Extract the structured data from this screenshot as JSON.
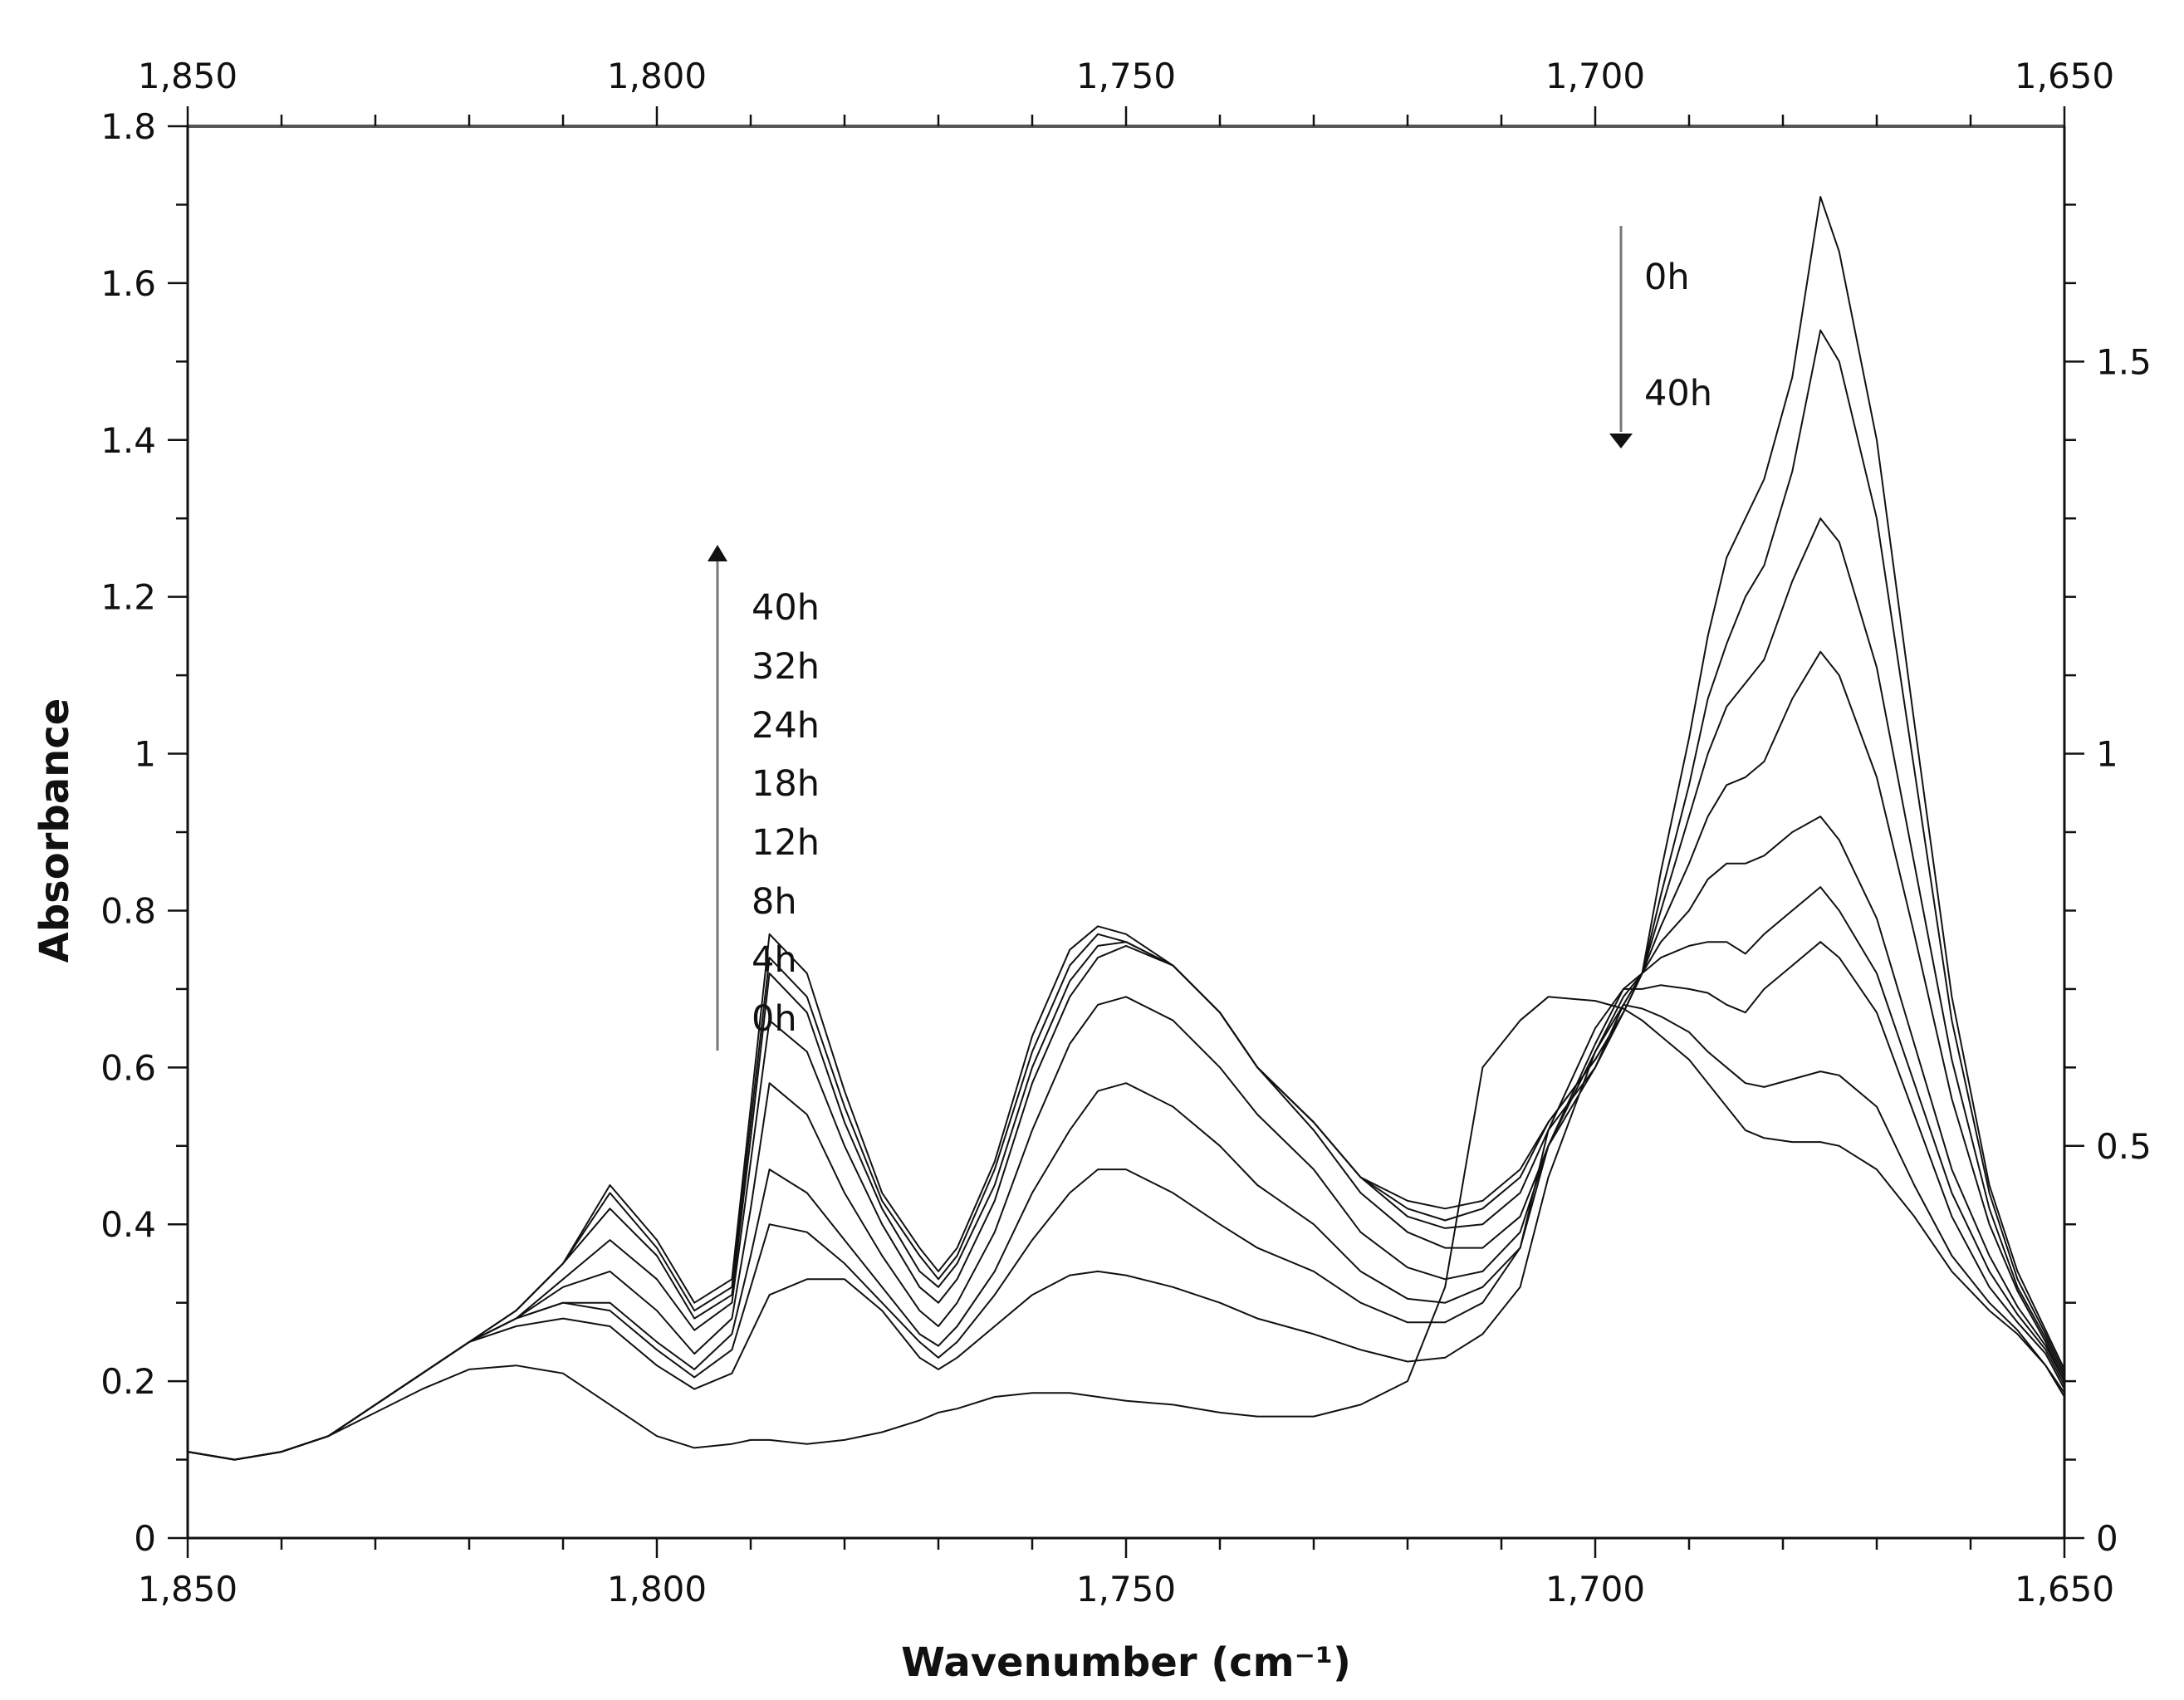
{
  "chart_data": {
    "type": "line",
    "title": "",
    "xlabel": "Wavenumber (cm⁻¹)",
    "ylabel": "Absorbance",
    "xlim": [
      1850,
      1650
    ],
    "ylim": [
      0,
      1.8
    ],
    "ylim_right": [
      0,
      1.8
    ],
    "x_ticks": [
      1850,
      1800,
      1750,
      1700,
      1650
    ],
    "x_tick_labels": [
      "1,850",
      "1,800",
      "1,750",
      "1,700",
      "1,650"
    ],
    "y_ticks": [
      0,
      0.2,
      0.4,
      0.6,
      0.8,
      1,
      1.2,
      1.4,
      1.6,
      1.8
    ],
    "y_tick_labels": [
      "0",
      "0.2",
      "0.4",
      "0.6",
      "0.8",
      "1",
      "1.2",
      "1.4",
      "1.6",
      "1.8"
    ],
    "y_right_ticks": [
      0,
      0.5,
      1,
      1.5
    ],
    "y_right_tick_labels": [
      "0",
      "0.5",
      "1",
      "1.5"
    ],
    "grid": false,
    "annotations": {
      "increasing_label": [
        "40h",
        "32h",
        "24h",
        "18h",
        "12h",
        "8h",
        "4h",
        "0h"
      ],
      "decreasing_label": [
        "0h",
        "40h"
      ]
    },
    "x": [
      1850,
      1845,
      1840,
      1835,
      1830,
      1825,
      1820,
      1815,
      1810,
      1805,
      1800,
      1796,
      1792,
      1790,
      1788,
      1784,
      1780,
      1776,
      1772,
      1770,
      1768,
      1764,
      1760,
      1756,
      1753,
      1750,
      1745,
      1740,
      1736,
      1730,
      1725,
      1720,
      1716,
      1712,
      1708,
      1705,
      1700,
      1697,
      1695,
      1693,
      1690,
      1688,
      1686,
      1684,
      1682,
      1679,
      1676,
      1674,
      1670,
      1666,
      1662,
      1658,
      1655,
      1652,
      1650
    ],
    "series": [
      {
        "name": "0h",
        "values": [
          0.11,
          0.1,
          0.11,
          0.13,
          0.16,
          0.19,
          0.215,
          0.22,
          0.21,
          0.17,
          0.13,
          0.115,
          0.12,
          0.125,
          0.125,
          0.12,
          0.125,
          0.135,
          0.15,
          0.16,
          0.165,
          0.18,
          0.185,
          0.185,
          0.18,
          0.175,
          0.17,
          0.16,
          0.155,
          0.155,
          0.17,
          0.2,
          0.32,
          0.6,
          0.66,
          0.69,
          0.685,
          0.675,
          0.66,
          0.64,
          0.61,
          0.58,
          0.55,
          0.52,
          0.51,
          0.505,
          0.505,
          0.5,
          0.47,
          0.41,
          0.34,
          0.29,
          0.26,
          0.22,
          0.18
        ]
      },
      {
        "name": "4h",
        "values": [
          0.11,
          0.1,
          0.11,
          0.13,
          0.17,
          0.21,
          0.25,
          0.27,
          0.28,
          0.27,
          0.22,
          0.19,
          0.21,
          0.26,
          0.31,
          0.33,
          0.33,
          0.29,
          0.23,
          0.215,
          0.23,
          0.27,
          0.31,
          0.335,
          0.34,
          0.335,
          0.32,
          0.3,
          0.28,
          0.26,
          0.24,
          0.225,
          0.23,
          0.26,
          0.32,
          0.46,
          0.62,
          0.68,
          0.675,
          0.665,
          0.645,
          0.62,
          0.6,
          0.58,
          0.575,
          0.585,
          0.595,
          0.59,
          0.55,
          0.45,
          0.36,
          0.3,
          0.265,
          0.22,
          0.185
        ]
      },
      {
        "name": "8h",
        "values": [
          0.11,
          0.1,
          0.11,
          0.13,
          0.17,
          0.21,
          0.25,
          0.28,
          0.3,
          0.29,
          0.24,
          0.205,
          0.24,
          0.32,
          0.4,
          0.39,
          0.35,
          0.3,
          0.25,
          0.23,
          0.25,
          0.31,
          0.38,
          0.44,
          0.47,
          0.47,
          0.44,
          0.4,
          0.37,
          0.34,
          0.3,
          0.275,
          0.275,
          0.3,
          0.37,
          0.52,
          0.65,
          0.7,
          0.7,
          0.705,
          0.7,
          0.695,
          0.68,
          0.67,
          0.7,
          0.73,
          0.76,
          0.74,
          0.67,
          0.54,
          0.41,
          0.32,
          0.275,
          0.235,
          0.19
        ]
      },
      {
        "name": "12h",
        "values": [
          0.11,
          0.1,
          0.11,
          0.13,
          0.17,
          0.21,
          0.25,
          0.28,
          0.3,
          0.3,
          0.25,
          0.215,
          0.26,
          0.36,
          0.47,
          0.44,
          0.38,
          0.32,
          0.26,
          0.245,
          0.27,
          0.34,
          0.44,
          0.52,
          0.57,
          0.58,
          0.55,
          0.5,
          0.45,
          0.4,
          0.34,
          0.305,
          0.3,
          0.32,
          0.37,
          0.5,
          0.63,
          0.7,
          0.72,
          0.74,
          0.755,
          0.76,
          0.76,
          0.745,
          0.77,
          0.8,
          0.83,
          0.8,
          0.72,
          0.58,
          0.44,
          0.34,
          0.285,
          0.24,
          0.195
        ]
      },
      {
        "name": "18h",
        "values": [
          0.11,
          0.1,
          0.11,
          0.13,
          0.17,
          0.21,
          0.25,
          0.28,
          0.32,
          0.34,
          0.29,
          0.235,
          0.28,
          0.42,
          0.58,
          0.54,
          0.44,
          0.36,
          0.29,
          0.27,
          0.3,
          0.39,
          0.52,
          0.63,
          0.68,
          0.69,
          0.66,
          0.6,
          0.54,
          0.47,
          0.39,
          0.345,
          0.33,
          0.34,
          0.39,
          0.5,
          0.62,
          0.69,
          0.72,
          0.76,
          0.8,
          0.84,
          0.86,
          0.86,
          0.87,
          0.9,
          0.92,
          0.89,
          0.79,
          0.63,
          0.47,
          0.36,
          0.295,
          0.245,
          0.2
        ]
      },
      {
        "name": "24h",
        "values": [
          0.11,
          0.1,
          0.11,
          0.13,
          0.17,
          0.21,
          0.25,
          0.28,
          0.33,
          0.38,
          0.33,
          0.265,
          0.3,
          0.48,
          0.66,
          0.62,
          0.5,
          0.4,
          0.32,
          0.3,
          0.33,
          0.43,
          0.58,
          0.69,
          0.74,
          0.755,
          0.73,
          0.67,
          0.6,
          0.52,
          0.44,
          0.39,
          0.37,
          0.37,
          0.41,
          0.5,
          0.6,
          0.68,
          0.72,
          0.78,
          0.86,
          0.92,
          0.96,
          0.97,
          0.99,
          1.07,
          1.13,
          1.1,
          0.97,
          0.77,
          0.56,
          0.4,
          0.315,
          0.25,
          0.2
        ]
      },
      {
        "name": "32h",
        "values": [
          0.11,
          0.1,
          0.11,
          0.13,
          0.17,
          0.21,
          0.25,
          0.29,
          0.35,
          0.42,
          0.36,
          0.28,
          0.31,
          0.51,
          0.72,
          0.67,
          0.53,
          0.42,
          0.34,
          0.32,
          0.35,
          0.45,
          0.6,
          0.71,
          0.755,
          0.76,
          0.73,
          0.67,
          0.6,
          0.53,
          0.46,
          0.41,
          0.395,
          0.4,
          0.44,
          0.52,
          0.6,
          0.67,
          0.72,
          0.8,
          0.92,
          1.0,
          1.06,
          1.09,
          1.12,
          1.22,
          1.3,
          1.27,
          1.11,
          0.86,
          0.61,
          0.42,
          0.32,
          0.255,
          0.205
        ]
      },
      {
        "name": "40h",
        "values": [
          0.11,
          0.1,
          0.11,
          0.13,
          0.17,
          0.21,
          0.25,
          0.29,
          0.35,
          0.44,
          0.37,
          0.29,
          0.32,
          0.53,
          0.74,
          0.69,
          0.55,
          0.43,
          0.36,
          0.33,
          0.36,
          0.47,
          0.62,
          0.73,
          0.77,
          0.76,
          0.73,
          0.67,
          0.6,
          0.53,
          0.46,
          0.42,
          0.405,
          0.42,
          0.46,
          0.53,
          0.61,
          0.67,
          0.72,
          0.82,
          0.96,
          1.07,
          1.14,
          1.2,
          1.24,
          1.36,
          1.54,
          1.5,
          1.3,
          0.98,
          0.66,
          0.44,
          0.33,
          0.26,
          0.21
        ]
      },
      {
        "name": "40h-top",
        "values": [
          0.11,
          0.1,
          0.11,
          0.13,
          0.17,
          0.21,
          0.25,
          0.29,
          0.35,
          0.45,
          0.38,
          0.3,
          0.33,
          0.55,
          0.77,
          0.72,
          0.57,
          0.44,
          0.37,
          0.34,
          0.37,
          0.48,
          0.64,
          0.75,
          0.78,
          0.77,
          0.73,
          0.67,
          0.6,
          0.53,
          0.46,
          0.43,
          0.42,
          0.43,
          0.47,
          0.53,
          0.61,
          0.67,
          0.72,
          0.85,
          1.02,
          1.15,
          1.25,
          1.3,
          1.35,
          1.48,
          1.71,
          1.64,
          1.4,
          1.04,
          0.69,
          0.45,
          0.34,
          0.265,
          0.215
        ]
      }
    ]
  }
}
